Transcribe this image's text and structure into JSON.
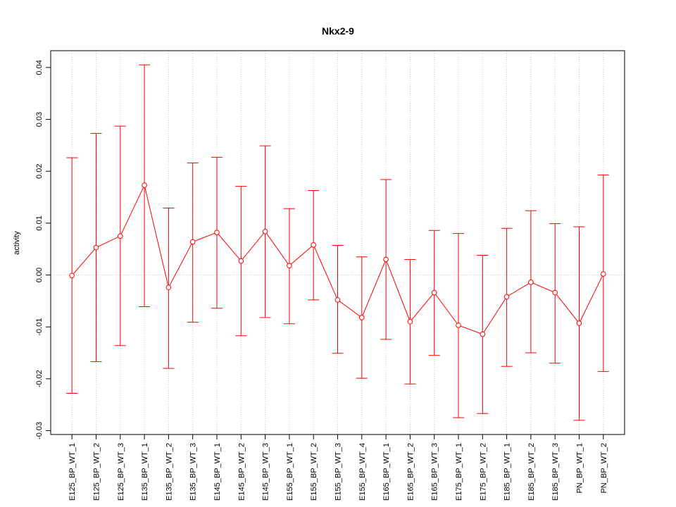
{
  "chart_data": {
    "type": "line",
    "title": "Nkx2-9",
    "xlabel": "",
    "ylabel": "activity",
    "ylim": [
      -0.03074,
      0.04324
    ],
    "yticks": [
      -0.03,
      -0.02,
      -0.01,
      0.0,
      0.01,
      0.02,
      0.03,
      0.04
    ],
    "ytick_labels": [
      "-0.03",
      "-0.02",
      "-0.01",
      "0.00",
      "0.01",
      "0.02",
      "0.03",
      "0.04"
    ],
    "grid": "dotted vertical at each category, horizontal at 0",
    "color": "#ff0000",
    "categories": [
      "E125_BP_WT_1",
      "E125_BP_WT_2",
      "E125_BP_WT_3",
      "E135_BP_WT_1",
      "E135_BP_WT_2",
      "E135_BP_WT_3",
      "E145_BP_WT_1",
      "E145_BP_WT_2",
      "E145_BP_WT_3",
      "E155_BP_WT_1",
      "E155_BP_WT_2",
      "E155_BP_WT_3",
      "E155_BP_WT_4",
      "E165_BP_WT_1",
      "E165_BP_WT_2",
      "E165_BP_WT_3",
      "E175_BP_WT_1",
      "E175_BP_WT_2",
      "E185_BP_WT_1",
      "E185_BP_WT_2",
      "E185_BP_WT_3",
      "PN_BP_WT_1",
      "PN_BP_WT_2"
    ],
    "values": [
      -0.0001,
      0.0053,
      0.0075,
      0.0173,
      -0.0024,
      0.0064,
      0.0082,
      0.0027,
      0.0084,
      0.0018,
      0.0058,
      -0.0048,
      -0.0082,
      0.003,
      -0.009,
      -0.0034,
      -0.0097,
      -0.0114,
      -0.0042,
      -0.0014,
      -0.0034,
      -0.0093,
      0.0002
    ],
    "upper": [
      0.0226,
      0.0273,
      0.0287,
      0.0405,
      0.0129,
      0.0216,
      0.0227,
      0.0171,
      0.0249,
      0.0128,
      0.0163,
      0.0057,
      0.0035,
      0.0184,
      0.003,
      0.0086,
      0.008,
      0.0038,
      0.009,
      0.0124,
      0.0099,
      0.0093,
      0.0193
    ],
    "lower": [
      -0.0228,
      -0.0167,
      -0.0136,
      -0.0061,
      -0.018,
      -0.0091,
      -0.0064,
      -0.0117,
      -0.0082,
      -0.0094,
      -0.0048,
      -0.0151,
      -0.0199,
      -0.0124,
      -0.021,
      -0.0155,
      -0.0275,
      -0.0267,
      -0.0176,
      -0.015,
      -0.017,
      -0.028,
      -0.0186
    ]
  }
}
